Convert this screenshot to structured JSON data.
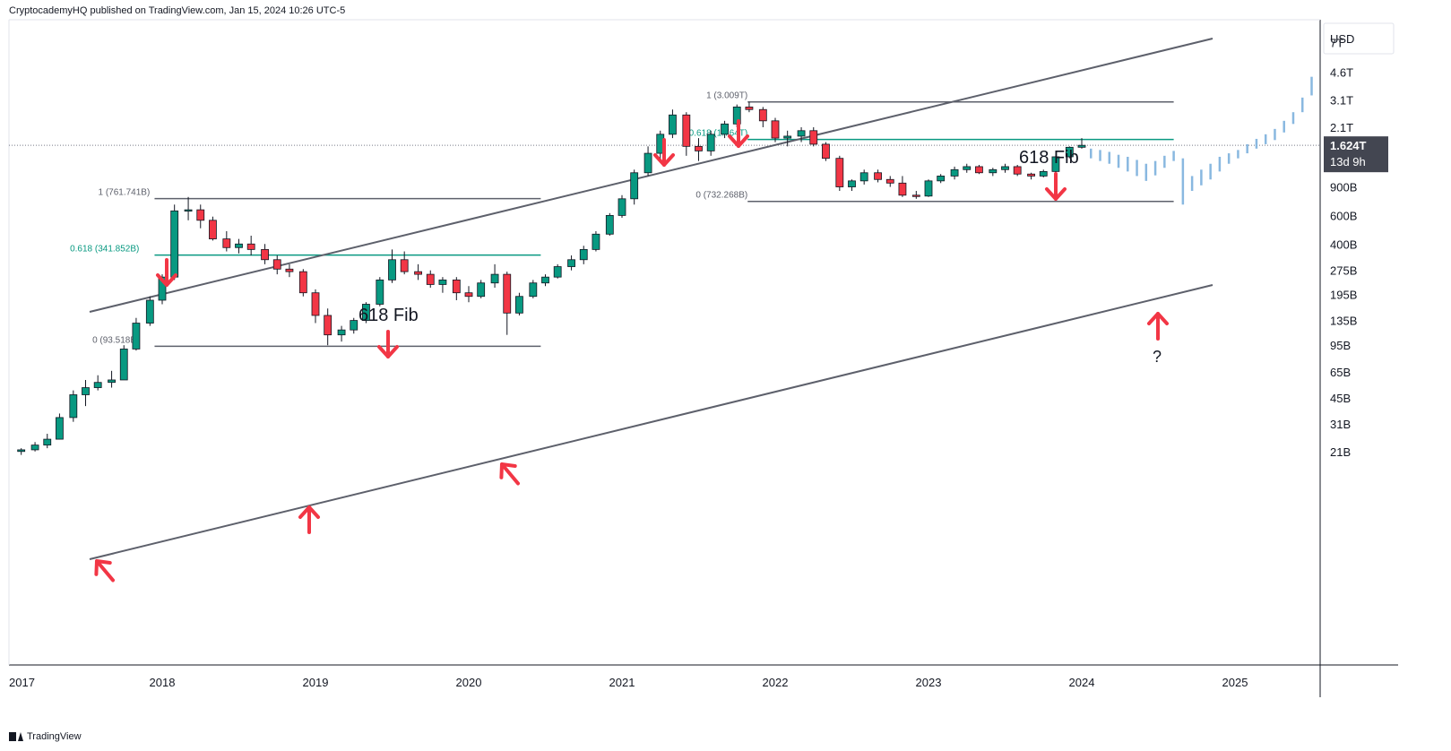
{
  "header": {
    "published_text": "CryptocademyHQ published on TradingView.com, Jan 15, 2024 10:26 UTC-5"
  },
  "footer": {
    "brand": "TradingView"
  },
  "chart_data": {
    "type": "candlestick",
    "title": "",
    "xlabel": "",
    "ylabel": "",
    "scale": "log",
    "currency": "USD",
    "x_ticks": [
      "2017",
      "2018",
      "2019",
      "2020",
      "2021",
      "2022",
      "2023",
      "2024",
      "2025"
    ],
    "y_ticks": [
      "7T",
      "4.6T",
      "3.1T",
      "2.1T",
      "900B",
      "600B",
      "400B",
      "275B",
      "195B",
      "135B",
      "95B",
      "65B",
      "45B",
      "31B",
      "21B"
    ],
    "y_tick_values": [
      7000,
      4600,
      3100,
      2100,
      900,
      600,
      400,
      275,
      195,
      135,
      95,
      65,
      45,
      31,
      21
    ],
    "current_price": {
      "label": "1.624T",
      "countdown": "13d 9h",
      "value": 1624
    },
    "fib_levels": [
      {
        "labels": [
          "1 (761.741B)",
          "0.618 (341.852B)",
          "0 (93.518B)"
        ],
        "values": [
          761.741,
          341.852,
          93.518
        ],
        "x_range": [
          "2017-12",
          "2020-06"
        ]
      },
      {
        "labels": [
          "1 (3.009T)",
          "0.618 (1.764T)",
          "0 (732.268B)"
        ],
        "values": [
          3009,
          1764,
          732.268
        ],
        "x_range": [
          "2021-11",
          "2024-07"
        ]
      }
    ],
    "annotations": [
      "618 Fib",
      "618 Fib",
      "?"
    ],
    "candles": [
      [
        2017.08,
        21,
        22,
        20,
        21.5
      ],
      [
        2017.17,
        21.5,
        24,
        21,
        23
      ],
      [
        2017.25,
        23,
        27,
        22,
        25
      ],
      [
        2017.33,
        25,
        36,
        25,
        34
      ],
      [
        2017.42,
        34,
        50,
        32,
        47
      ],
      [
        2017.5,
        47,
        58,
        40,
        52
      ],
      [
        2017.58,
        52,
        62,
        50,
        56
      ],
      [
        2017.67,
        56,
        66,
        52,
        58
      ],
      [
        2017.75,
        58,
        95,
        58,
        90
      ],
      [
        2017.83,
        90,
        140,
        88,
        130
      ],
      [
        2017.92,
        130,
        190,
        125,
        180
      ],
      [
        2018.0,
        180,
        260,
        170,
        250
      ],
      [
        2018.08,
        250,
        700,
        240,
        640
      ],
      [
        2018.17,
        640,
        780,
        560,
        650
      ],
      [
        2018.25,
        650,
        700,
        500,
        560
      ],
      [
        2018.33,
        560,
        590,
        420,
        430
      ],
      [
        2018.42,
        430,
        480,
        360,
        380
      ],
      [
        2018.5,
        380,
        430,
        350,
        400
      ],
      [
        2018.58,
        400,
        450,
        340,
        370
      ],
      [
        2018.67,
        370,
        400,
        300,
        320
      ],
      [
        2018.75,
        320,
        340,
        260,
        280
      ],
      [
        2018.83,
        280,
        300,
        250,
        270
      ],
      [
        2018.92,
        270,
        280,
        190,
        200
      ],
      [
        2019.0,
        200,
        210,
        130,
        145
      ],
      [
        2019.08,
        145,
        160,
        95,
        110
      ],
      [
        2019.17,
        110,
        125,
        100,
        118
      ],
      [
        2019.25,
        118,
        140,
        112,
        135
      ],
      [
        2019.33,
        135,
        175,
        130,
        170
      ],
      [
        2019.42,
        170,
        250,
        165,
        240
      ],
      [
        2019.5,
        240,
        370,
        230,
        320
      ],
      [
        2019.58,
        320,
        360,
        260,
        270
      ],
      [
        2019.67,
        270,
        300,
        240,
        260
      ],
      [
        2019.75,
        260,
        275,
        215,
        225
      ],
      [
        2019.83,
        225,
        250,
        200,
        240
      ],
      [
        2019.92,
        240,
        250,
        180,
        200
      ],
      [
        2020.0,
        200,
        220,
        175,
        190
      ],
      [
        2020.08,
        190,
        240,
        185,
        230
      ],
      [
        2020.17,
        230,
        300,
        215,
        260
      ],
      [
        2020.25,
        260,
        270,
        110,
        150
      ],
      [
        2020.33,
        150,
        200,
        145,
        190
      ],
      [
        2020.42,
        190,
        240,
        185,
        230
      ],
      [
        2020.5,
        230,
        260,
        220,
        250
      ],
      [
        2020.58,
        250,
        300,
        245,
        290
      ],
      [
        2020.67,
        290,
        340,
        275,
        320
      ],
      [
        2020.75,
        320,
        390,
        300,
        370
      ],
      [
        2020.83,
        370,
        480,
        360,
        460
      ],
      [
        2020.92,
        460,
        620,
        450,
        600
      ],
      [
        2021.0,
        600,
        800,
        580,
        760
      ],
      [
        2021.08,
        760,
        1150,
        700,
        1100
      ],
      [
        2021.17,
        1100,
        1600,
        1050,
        1450
      ],
      [
        2021.25,
        1450,
        2000,
        1300,
        1900
      ],
      [
        2021.33,
        1900,
        2700,
        1800,
        2500
      ],
      [
        2021.42,
        2500,
        2600,
        1400,
        1600
      ],
      [
        2021.5,
        1600,
        1800,
        1300,
        1500
      ],
      [
        2021.58,
        1500,
        2000,
        1400,
        1900
      ],
      [
        2021.67,
        1900,
        2300,
        1800,
        2200
      ],
      [
        2021.75,
        2200,
        2900,
        2100,
        2800
      ],
      [
        2021.83,
        2800,
        3009,
        2600,
        2700
      ],
      [
        2021.92,
        2700,
        2800,
        2100,
        2300
      ],
      [
        2022.0,
        2300,
        2400,
        1700,
        1800
      ],
      [
        2022.08,
        1800,
        2000,
        1600,
        1850
      ],
      [
        2022.17,
        1850,
        2100,
        1700,
        2000
      ],
      [
        2022.25,
        2000,
        2100,
        1600,
        1650
      ],
      [
        2022.33,
        1650,
        1700,
        1300,
        1350
      ],
      [
        2022.42,
        1350,
        1400,
        850,
        900
      ],
      [
        2022.5,
        900,
        1000,
        850,
        980
      ],
      [
        2022.58,
        980,
        1150,
        930,
        1100
      ],
      [
        2022.67,
        1100,
        1150,
        960,
        1000
      ],
      [
        2022.75,
        1000,
        1050,
        900,
        950
      ],
      [
        2022.83,
        950,
        1050,
        780,
        800
      ],
      [
        2022.92,
        800,
        850,
        760,
        790
      ],
      [
        2023.0,
        790,
        1000,
        780,
        980
      ],
      [
        2023.08,
        980,
        1080,
        950,
        1050
      ],
      [
        2023.17,
        1050,
        1200,
        1000,
        1150
      ],
      [
        2023.25,
        1150,
        1250,
        1100,
        1200
      ],
      [
        2023.33,
        1200,
        1230,
        1080,
        1100
      ],
      [
        2023.42,
        1100,
        1180,
        1050,
        1150
      ],
      [
        2023.5,
        1150,
        1250,
        1100,
        1200
      ],
      [
        2023.58,
        1200,
        1230,
        1050,
        1080
      ],
      [
        2023.67,
        1080,
        1100,
        1000,
        1050
      ],
      [
        2023.75,
        1050,
        1150,
        1030,
        1120
      ],
      [
        2023.83,
        1120,
        1400,
        1100,
        1380
      ],
      [
        2023.92,
        1380,
        1600,
        1350,
        1580
      ],
      [
        2024.0,
        1580,
        1800,
        1550,
        1624
      ]
    ],
    "projection": [
      [
        2024.06,
        1550,
        1350
      ],
      [
        2024.12,
        1520,
        1300
      ],
      [
        2024.18,
        1480,
        1250
      ],
      [
        2024.24,
        1420,
        1180
      ],
      [
        2024.3,
        1380,
        1120
      ],
      [
        2024.36,
        1320,
        1050
      ],
      [
        2024.42,
        1250,
        980
      ],
      [
        2024.48,
        1300,
        1060
      ],
      [
        2024.54,
        1400,
        1180
      ],
      [
        2024.6,
        1500,
        1300
      ],
      [
        2024.66,
        1350,
        700
      ],
      [
        2024.72,
        1050,
        850
      ],
      [
        2024.78,
        1150,
        920
      ],
      [
        2024.84,
        1250,
        1000
      ],
      [
        2024.9,
        1380,
        1120
      ],
      [
        2024.96,
        1450,
        1250
      ],
      [
        2025.02,
        1520,
        1350
      ],
      [
        2025.08,
        1650,
        1450
      ],
      [
        2025.14,
        1780,
        1550
      ],
      [
        2025.2,
        1900,
        1650
      ],
      [
        2025.26,
        2050,
        1750
      ],
      [
        2025.32,
        2300,
        1950
      ],
      [
        2025.38,
        2600,
        2200
      ],
      [
        2025.44,
        3200,
        2600
      ],
      [
        2025.5,
        4300,
        3300
      ]
    ]
  }
}
